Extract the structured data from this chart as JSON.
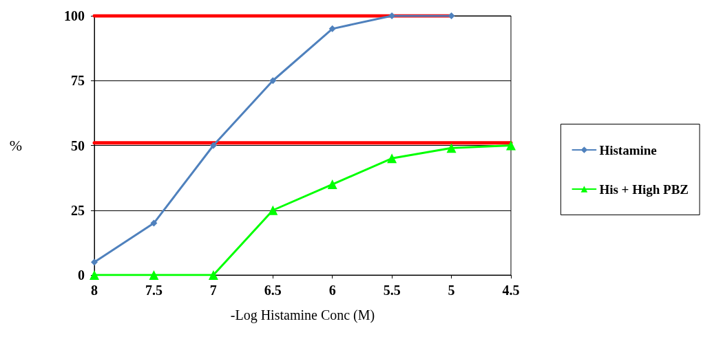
{
  "chart_data": {
    "type": "line",
    "xlabel": "-Log Histamine Conc (M)",
    "ylabel": "%",
    "categories": [
      "8",
      "7.5",
      "7",
      "6.5",
      "6",
      "5.5",
      "5",
      "4.5"
    ],
    "series": [
      {
        "name": "Histamine",
        "color": "#4f81bd",
        "marker": "diamond",
        "values": [
          5,
          20,
          50,
          75,
          95,
          100,
          100,
          null
        ]
      },
      {
        "name": "His + High PBZ",
        "color": "#00ff00",
        "marker": "triangle",
        "values": [
          0,
          0,
          0,
          25,
          35,
          45,
          49,
          50
        ]
      },
      {
        "color": "#ff0000",
        "marker": "none",
        "values": [
          100,
          100,
          100,
          100,
          100,
          100,
          100,
          null
        ]
      },
      {
        "color": "#ff0000",
        "marker": "none",
        "values": [
          51,
          51,
          51,
          51,
          51,
          51,
          51,
          51
        ]
      }
    ],
    "ylim": [
      0,
      100
    ],
    "yticks": [
      0,
      25,
      50,
      75,
      100
    ],
    "grid": "y",
    "legend": "right"
  }
}
